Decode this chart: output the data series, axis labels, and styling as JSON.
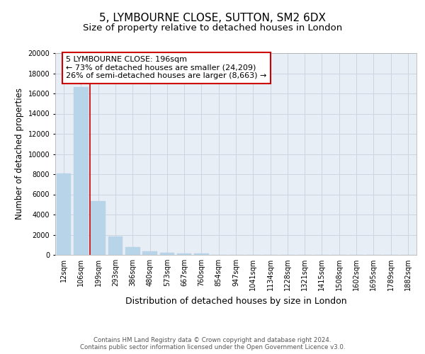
{
  "title": "5, LYMBOURNE CLOSE, SUTTON, SM2 6DX",
  "subtitle": "Size of property relative to detached houses in London",
  "xlabel": "Distribution of detached houses by size in London",
  "ylabel": "Number of detached properties",
  "categories": [
    "12sqm",
    "106sqm",
    "199sqm",
    "293sqm",
    "386sqm",
    "480sqm",
    "573sqm",
    "667sqm",
    "760sqm",
    "854sqm",
    "947sqm",
    "1041sqm",
    "1134sqm",
    "1228sqm",
    "1321sqm",
    "1415sqm",
    "1508sqm",
    "1602sqm",
    "1695sqm",
    "1789sqm",
    "1882sqm"
  ],
  "values": [
    8100,
    16600,
    5300,
    1800,
    750,
    330,
    200,
    150,
    140,
    0,
    0,
    0,
    0,
    0,
    0,
    0,
    0,
    0,
    0,
    0,
    0
  ],
  "bar_color": "#b8d4e8",
  "bar_edge_color": "#b8d4e8",
  "vline_x_index": 1.5,
  "vline_color": "#cc0000",
  "annotation_line1": "5 LYMBOURNE CLOSE: 196sqm",
  "annotation_line2": "← 73% of detached houses are smaller (24,209)",
  "annotation_line3": "26% of semi-detached houses are larger (8,663) →",
  "annotation_box_color": "#ffffff",
  "annotation_border_color": "#cc0000",
  "ylim": [
    0,
    20000
  ],
  "yticks": [
    0,
    2000,
    4000,
    6000,
    8000,
    10000,
    12000,
    14000,
    16000,
    18000,
    20000
  ],
  "grid_color": "#ccd5e0",
  "background_color": "#e8eef5",
  "footer_text": "Contains HM Land Registry data © Crown copyright and database right 2024.\nContains public sector information licensed under the Open Government Licence v3.0.",
  "title_fontsize": 11,
  "subtitle_fontsize": 9.5,
  "tick_fontsize": 7,
  "ylabel_fontsize": 8.5,
  "xlabel_fontsize": 9
}
